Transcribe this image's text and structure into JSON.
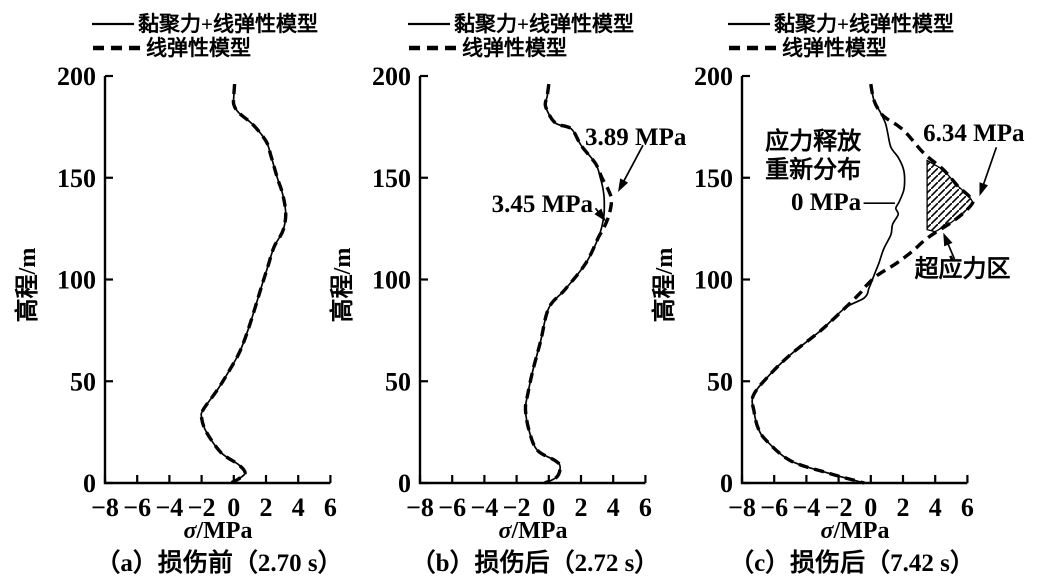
{
  "figure": {
    "background": "#ffffff",
    "ink": "#000000"
  },
  "legend": {
    "solid_label": "黏聚力+线弹性模型",
    "dashed_label": "线弹性模型"
  },
  "chart_data": [
    {
      "type": "line",
      "caption": "（a）损伤前（2.70 s）",
      "xlabel": "σ/MPa",
      "ylabel": "高程/m",
      "xlim": [
        -8,
        6
      ],
      "ylim": [
        0,
        200
      ],
      "xticks": [
        -8,
        -6,
        -4,
        -2,
        0,
        2,
        4,
        6
      ],
      "yticks": [
        0,
        50,
        100,
        150,
        200
      ],
      "grid": false,
      "legend_position": "above",
      "legend_entries": [
        "黏聚力+线弹性模型",
        "线弹性模型"
      ],
      "series": [
        {
          "name": "黏聚力+线弹性模型",
          "style": "solid",
          "points": [
            [
              0.05,
              196
            ],
            [
              0.0,
              190
            ],
            [
              0.0,
              186
            ],
            [
              0.3,
              182
            ],
            [
              1.2,
              176
            ],
            [
              2.0,
              168
            ],
            [
              2.3,
              161
            ],
            [
              2.7,
              150
            ],
            [
              3.0,
              143
            ],
            [
              3.2,
              135
            ],
            [
              3.2,
              129
            ],
            [
              3.0,
              123
            ],
            [
              2.5,
              116
            ],
            [
              2.1,
              106
            ],
            [
              1.7,
              96
            ],
            [
              1.0,
              78
            ],
            [
              0.4,
              65
            ],
            [
              -0.3,
              55
            ],
            [
              -1.0,
              46
            ],
            [
              -1.9,
              36
            ],
            [
              -2.0,
              32
            ],
            [
              -1.7,
              25
            ],
            [
              -0.8,
              15
            ],
            [
              0.3,
              9
            ],
            [
              0.7,
              5
            ],
            [
              0.3,
              2
            ],
            [
              -0.2,
              0
            ]
          ]
        },
        {
          "name": "线弹性模型",
          "style": "dashed",
          "points": [
            [
              0.05,
              196
            ],
            [
              0.0,
              190
            ],
            [
              0.0,
              186
            ],
            [
              0.3,
              182
            ],
            [
              1.2,
              176
            ],
            [
              2.0,
              168
            ],
            [
              2.3,
              161
            ],
            [
              2.7,
              150
            ],
            [
              3.0,
              143
            ],
            [
              3.2,
              135
            ],
            [
              3.2,
              129
            ],
            [
              3.0,
              123
            ],
            [
              2.5,
              116
            ],
            [
              2.1,
              106
            ],
            [
              1.7,
              96
            ],
            [
              1.0,
              78
            ],
            [
              0.4,
              65
            ],
            [
              -0.3,
              55
            ],
            [
              -1.0,
              46
            ],
            [
              -1.9,
              36
            ],
            [
              -2.0,
              32
            ],
            [
              -1.7,
              25
            ],
            [
              -0.8,
              15
            ],
            [
              0.3,
              9
            ],
            [
              0.7,
              5
            ],
            [
              0.3,
              2
            ],
            [
              -0.2,
              0
            ]
          ]
        }
      ],
      "annotations": []
    },
    {
      "type": "line",
      "caption": "（b）损伤后（2.72 s）",
      "xlabel": "σ/MPa",
      "ylabel": "高程/m",
      "xlim": [
        -8,
        6
      ],
      "ylim": [
        0,
        200
      ],
      "xticks": [
        -8,
        -6,
        -4,
        -2,
        0,
        2,
        4,
        6
      ],
      "yticks": [
        0,
        50,
        100,
        150,
        200
      ],
      "grid": false,
      "legend_position": "above",
      "legend_entries": [
        "黏聚力+线弹性模型",
        "线弹性模型"
      ],
      "series": [
        {
          "name": "黏聚力+线弹性模型",
          "style": "solid",
          "points": [
            [
              0.0,
              196
            ],
            [
              -0.1,
              190
            ],
            [
              -0.2,
              185
            ],
            [
              0.4,
              177
            ],
            [
              1.4,
              174
            ],
            [
              2.0,
              166
            ],
            [
              2.9,
              157
            ],
            [
              3.2,
              150
            ],
            [
              3.4,
              143
            ],
            [
              3.45,
              137
            ],
            [
              3.4,
              130
            ],
            [
              3.1,
              121
            ],
            [
              2.3,
              108
            ],
            [
              1.0,
              95
            ],
            [
              0.0,
              86
            ],
            [
              -0.5,
              70
            ],
            [
              -1.0,
              55
            ],
            [
              -1.3,
              44
            ],
            [
              -1.45,
              36
            ],
            [
              -1.2,
              25
            ],
            [
              -0.7,
              16
            ],
            [
              0.4,
              11
            ],
            [
              0.7,
              8
            ],
            [
              0.5,
              3
            ],
            [
              -0.25,
              0
            ]
          ]
        },
        {
          "name": "线弹性模型",
          "style": "dashed",
          "points": [
            [
              0.0,
              196
            ],
            [
              -0.1,
              190
            ],
            [
              -0.2,
              185
            ],
            [
              0.4,
              177
            ],
            [
              1.4,
              174
            ],
            [
              2.0,
              166
            ],
            [
              2.9,
              157
            ],
            [
              3.3,
              150
            ],
            [
              3.7,
              144
            ],
            [
              3.89,
              139
            ],
            [
              3.75,
              132
            ],
            [
              3.4,
              125
            ],
            [
              3.1,
              121
            ],
            [
              2.3,
              108
            ],
            [
              1.0,
              95
            ],
            [
              0.0,
              86
            ],
            [
              -0.5,
              70
            ],
            [
              -1.0,
              55
            ],
            [
              -1.3,
              44
            ],
            [
              -1.45,
              36
            ],
            [
              -1.2,
              25
            ],
            [
              -0.7,
              16
            ],
            [
              0.4,
              11
            ],
            [
              0.7,
              8
            ],
            [
              0.5,
              3
            ],
            [
              -0.25,
              0
            ]
          ]
        }
      ],
      "annotations": [
        {
          "type": "text",
          "text": "3.89 MPa",
          "x": 5.4,
          "y": 170,
          "anchor": "middle"
        },
        {
          "type": "arrow",
          "from": [
            5.85,
            166
          ],
          "to": [
            4.3,
            143
          ]
        },
        {
          "type": "text",
          "text": "3.45 MPa",
          "x": -0.4,
          "y": 137,
          "anchor": "middle"
        },
        {
          "type": "arrow",
          "from": [
            2.9,
            135
          ],
          "to": [
            3.55,
            128.5
          ]
        }
      ]
    },
    {
      "type": "line",
      "caption": "（c）损伤后（7.42 s）",
      "xlabel": "σ/MPa",
      "ylabel": "高程/m",
      "xlim": [
        -8,
        6
      ],
      "ylim": [
        0,
        200
      ],
      "xticks": [
        -8,
        -6,
        -4,
        -2,
        0,
        2,
        4,
        6
      ],
      "yticks": [
        0,
        50,
        100,
        150,
        200
      ],
      "grid": false,
      "legend_position": "above",
      "legend_entries": [
        "黏聚力+线弹性模型",
        "线弹性模型"
      ],
      "series": [
        {
          "name": "黏聚力+线弹性模型",
          "style": "solid",
          "points": [
            [
              0.0,
              196
            ],
            [
              0.2,
              188
            ],
            [
              0.6,
              182
            ],
            [
              0.9,
              177
            ],
            [
              1.05,
              172
            ],
            [
              1.25,
              165
            ],
            [
              1.7,
              160
            ],
            [
              2.0,
              155
            ],
            [
              2.1,
              150
            ],
            [
              2.05,
              144
            ],
            [
              1.75,
              138
            ],
            [
              1.55,
              135
            ],
            [
              1.7,
              132
            ],
            [
              1.35,
              127
            ],
            [
              1.25,
              122
            ],
            [
              0.8,
              115
            ],
            [
              0.5,
              108
            ],
            [
              0.2,
              102
            ],
            [
              -0.1,
              96
            ],
            [
              -0.4,
              91
            ],
            [
              -1.6,
              86
            ],
            [
              -3.1,
              75
            ],
            [
              -5.0,
              63
            ],
            [
              -6.3,
              53
            ],
            [
              -7.3,
              43
            ],
            [
              -7.25,
              35
            ],
            [
              -7.0,
              27
            ],
            [
              -6.5,
              21
            ],
            [
              -5.0,
              11
            ],
            [
              -2.7,
              5
            ],
            [
              -0.4,
              0
            ]
          ]
        },
        {
          "name": "线弹性模型",
          "style": "dashed",
          "points": [
            [
              0.0,
              196
            ],
            [
              0.2,
              188
            ],
            [
              0.6,
              182
            ],
            [
              1.0,
              179
            ],
            [
              1.6,
              176
            ],
            [
              2.2,
              172
            ],
            [
              3.3,
              162
            ],
            [
              4.5,
              154
            ],
            [
              5.4,
              146
            ],
            [
              6.1,
              141
            ],
            [
              6.34,
              138
            ],
            [
              5.8,
              133
            ],
            [
              5.0,
              128
            ],
            [
              4.0,
              123
            ],
            [
              3.3,
              119
            ],
            [
              2.6,
              114
            ],
            [
              1.6,
              108
            ],
            [
              0.4,
              102
            ],
            [
              -0.4,
              96
            ],
            [
              -0.7,
              93
            ],
            [
              -1.6,
              86
            ],
            [
              -3.1,
              75
            ],
            [
              -5.0,
              63
            ],
            [
              -6.3,
              53
            ],
            [
              -7.3,
              43
            ],
            [
              -7.25,
              35
            ],
            [
              -7.0,
              27
            ],
            [
              -6.5,
              21
            ],
            [
              -5.0,
              11
            ],
            [
              -2.7,
              5
            ],
            [
              -0.4,
              0
            ]
          ]
        }
      ],
      "annotations": [
        {
          "type": "text",
          "text": "6.34 MPa",
          "x": 6.4,
          "y": 172,
          "anchor": "middle"
        },
        {
          "type": "arrow",
          "from": [
            7.8,
            165
          ],
          "to": [
            6.75,
            141
          ]
        },
        {
          "type": "text",
          "text": "应力释放",
          "x": -0.6,
          "y": 168,
          "anchor": "end"
        },
        {
          "type": "text",
          "text": "重新分布",
          "x": -0.6,
          "y": 154,
          "anchor": "end"
        },
        {
          "type": "text",
          "text": "0 MPa",
          "x": -0.6,
          "y": 138,
          "anchor": "end"
        },
        {
          "type": "line",
          "from": [
            -0.45,
            137.5
          ],
          "to": [
            1.5,
            137.5
          ]
        },
        {
          "type": "text",
          "text": "超应力区",
          "x": 5.7,
          "y": 105.5,
          "anchor": "middle"
        },
        {
          "type": "arrow",
          "from": [
            5.2,
            110
          ],
          "to": [
            4.5,
            123
          ]
        },
        {
          "type": "hatch",
          "label": "超应力区",
          "points": [
            [
              3.5,
              158.5
            ],
            [
              4.5,
              154
            ],
            [
              5.4,
              146
            ],
            [
              6.1,
              141
            ],
            [
              6.34,
              138
            ],
            [
              5.8,
              133
            ],
            [
              5.0,
              128
            ],
            [
              4.0,
              123.5
            ],
            [
              3.5,
              124.5
            ]
          ]
        }
      ]
    }
  ]
}
